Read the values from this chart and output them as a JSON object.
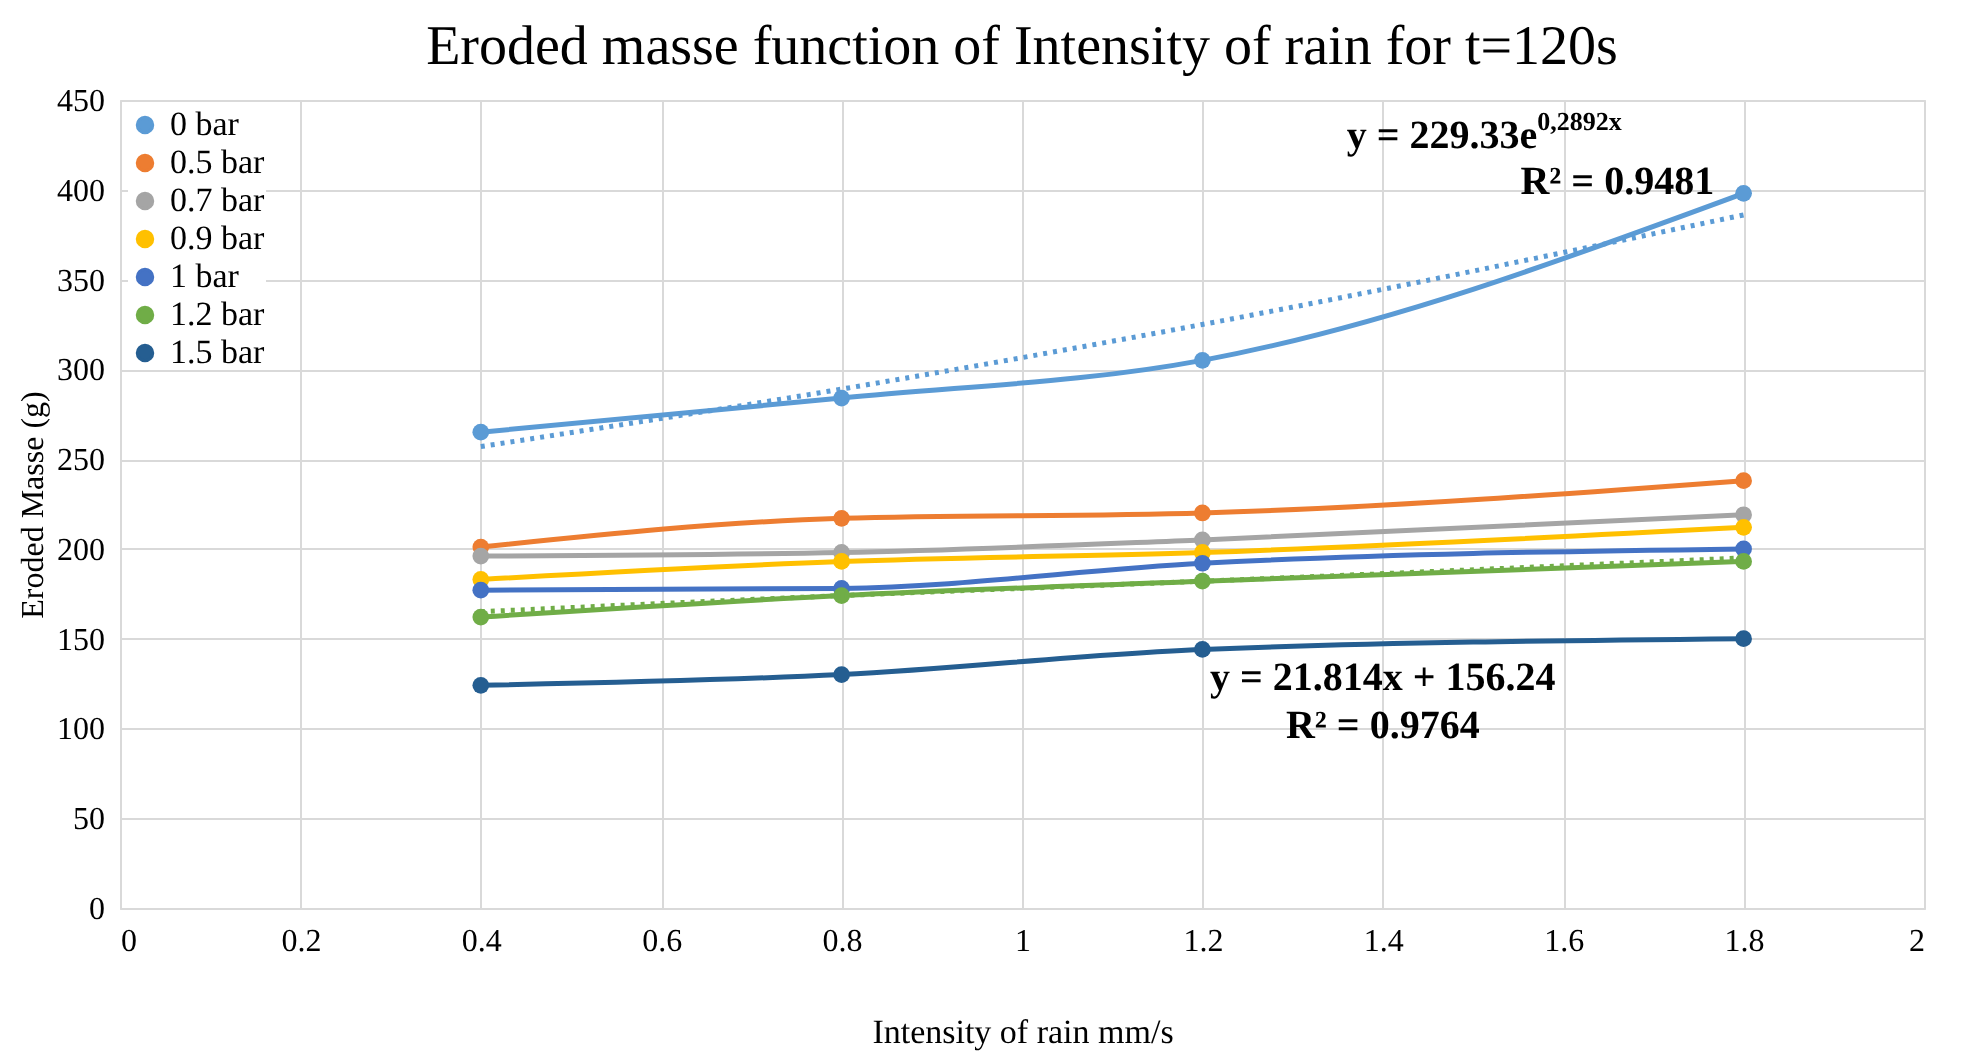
{
  "chart_data": {
    "type": "line",
    "title": "Eroded masse function of Intensity of rain for t=120s",
    "xlabel": "Intensity of rain mm/s",
    "ylabel": "Eroded Masse (g)",
    "x": [
      0.4,
      0.8,
      1.2,
      1.8
    ],
    "xlim": [
      0,
      2
    ],
    "xticks": [
      0,
      0.2,
      0.4,
      0.6,
      0.8,
      1,
      1.2,
      1.4,
      1.6,
      1.8,
      2
    ],
    "ylim": [
      0,
      450
    ],
    "yticks": [
      0,
      50,
      100,
      150,
      200,
      250,
      300,
      350,
      400,
      450
    ],
    "grid": true,
    "legend": "top left",
    "marker": "circle",
    "line_style": "solid",
    "series": [
      {
        "name": "0 bar",
        "color": "#5b9bd5",
        "values": [
          265,
          284,
          305,
          398
        ]
      },
      {
        "name": "0.5 bar",
        "color": "#ed7d31",
        "values": [
          201,
          217,
          220,
          238
        ]
      },
      {
        "name": "0.7 bar",
        "color": "#a5a5a5",
        "values": [
          196,
          198,
          205,
          219
        ]
      },
      {
        "name": "0.9 bar",
        "color": "#ffc000",
        "values": [
          183,
          193,
          198,
          212
        ]
      },
      {
        "name": "1 bar",
        "color": "#4472c4",
        "values": [
          177,
          178,
          192,
          200
        ]
      },
      {
        "name": "1.2 bar",
        "color": "#70ad47",
        "values": [
          162,
          174,
          182,
          193
        ]
      },
      {
        "name": "1.5 bar",
        "color": "#255e91",
        "values": [
          124,
          130,
          144,
          150
        ]
      },
      {
        "type": "line",
        "color": "#5b9bd5",
        "line_style": "dotted",
        "marker": "none",
        "values": [
          257,
          289,
          325,
          386
        ]
      },
      {
        "type": "line",
        "color": "#70ad47",
        "line_style": "dotted",
        "marker": "none",
        "values": [
          165,
          174,
          182,
          195
        ]
      }
    ],
    "annotations": [
      "y = 229.33e$^{0,2892x}$",
      "R² = 0.9481",
      "y = 21.814x + 156.24",
      "R² = 0.9764"
    ]
  }
}
